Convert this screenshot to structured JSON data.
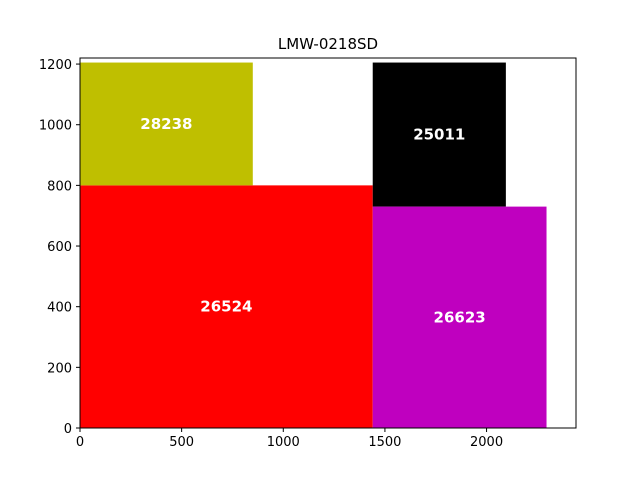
{
  "chart_data": {
    "type": "treemap",
    "title": "LMW-0218SD",
    "xlim": [
      0,
      2440
    ],
    "ylim": [
      0,
      1220
    ],
    "x_ticks": [
      0,
      500,
      1000,
      1500,
      2000
    ],
    "y_ticks": [
      0,
      200,
      400,
      600,
      800,
      1000,
      1200
    ],
    "grid": false,
    "rects": [
      {
        "label": "26524",
        "x0": 0,
        "x1": 1440,
        "y0": 0,
        "y1": 800,
        "color": "#ff0000"
      },
      {
        "label": "28238",
        "x0": 0,
        "x1": 850,
        "y0": 800,
        "y1": 1205,
        "color": "#bfbf00"
      },
      {
        "label": "25011",
        "x0": 1440,
        "x1": 2095,
        "y0": 730,
        "y1": 1205,
        "color": "#000000"
      },
      {
        "label": "26623",
        "x0": 1440,
        "x1": 2295,
        "y0": 0,
        "y1": 730,
        "color": "#bf00bf"
      }
    ]
  }
}
